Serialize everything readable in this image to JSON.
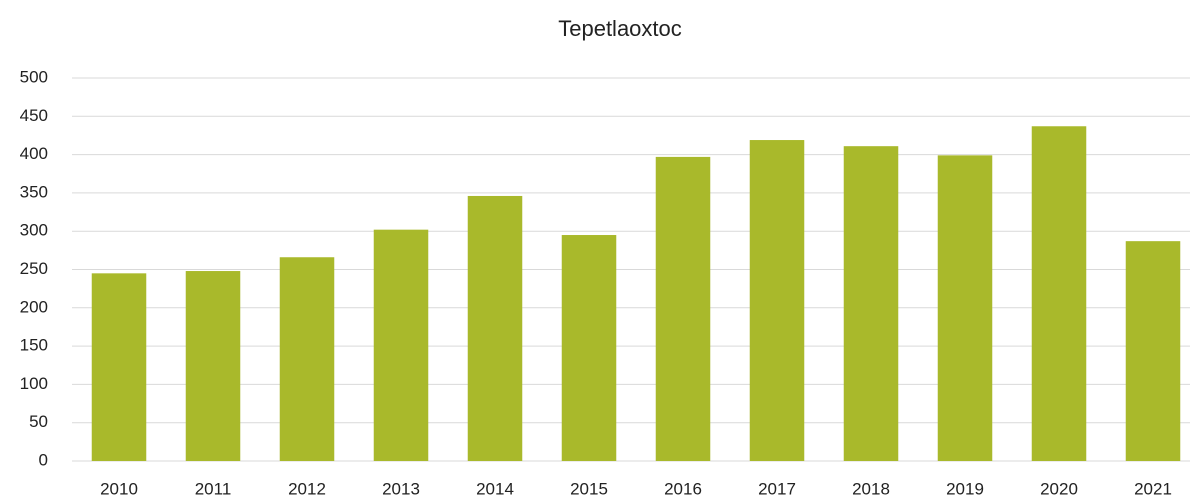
{
  "chart_data": {
    "type": "bar",
    "title": "Tepetlaoxtoc",
    "categories": [
      "2010",
      "2011",
      "2012",
      "2013",
      "2014",
      "2015",
      "2016",
      "2017",
      "2018",
      "2019",
      "2020",
      "2021"
    ],
    "values": [
      245,
      248,
      266,
      302,
      346,
      295,
      397,
      419,
      411,
      399,
      437,
      287
    ],
    "color": "#a9b92b",
    "ylim": [
      0,
      500
    ],
    "yticks": [
      0,
      50,
      100,
      150,
      200,
      250,
      300,
      350,
      400,
      450,
      500
    ],
    "grid": true
  }
}
